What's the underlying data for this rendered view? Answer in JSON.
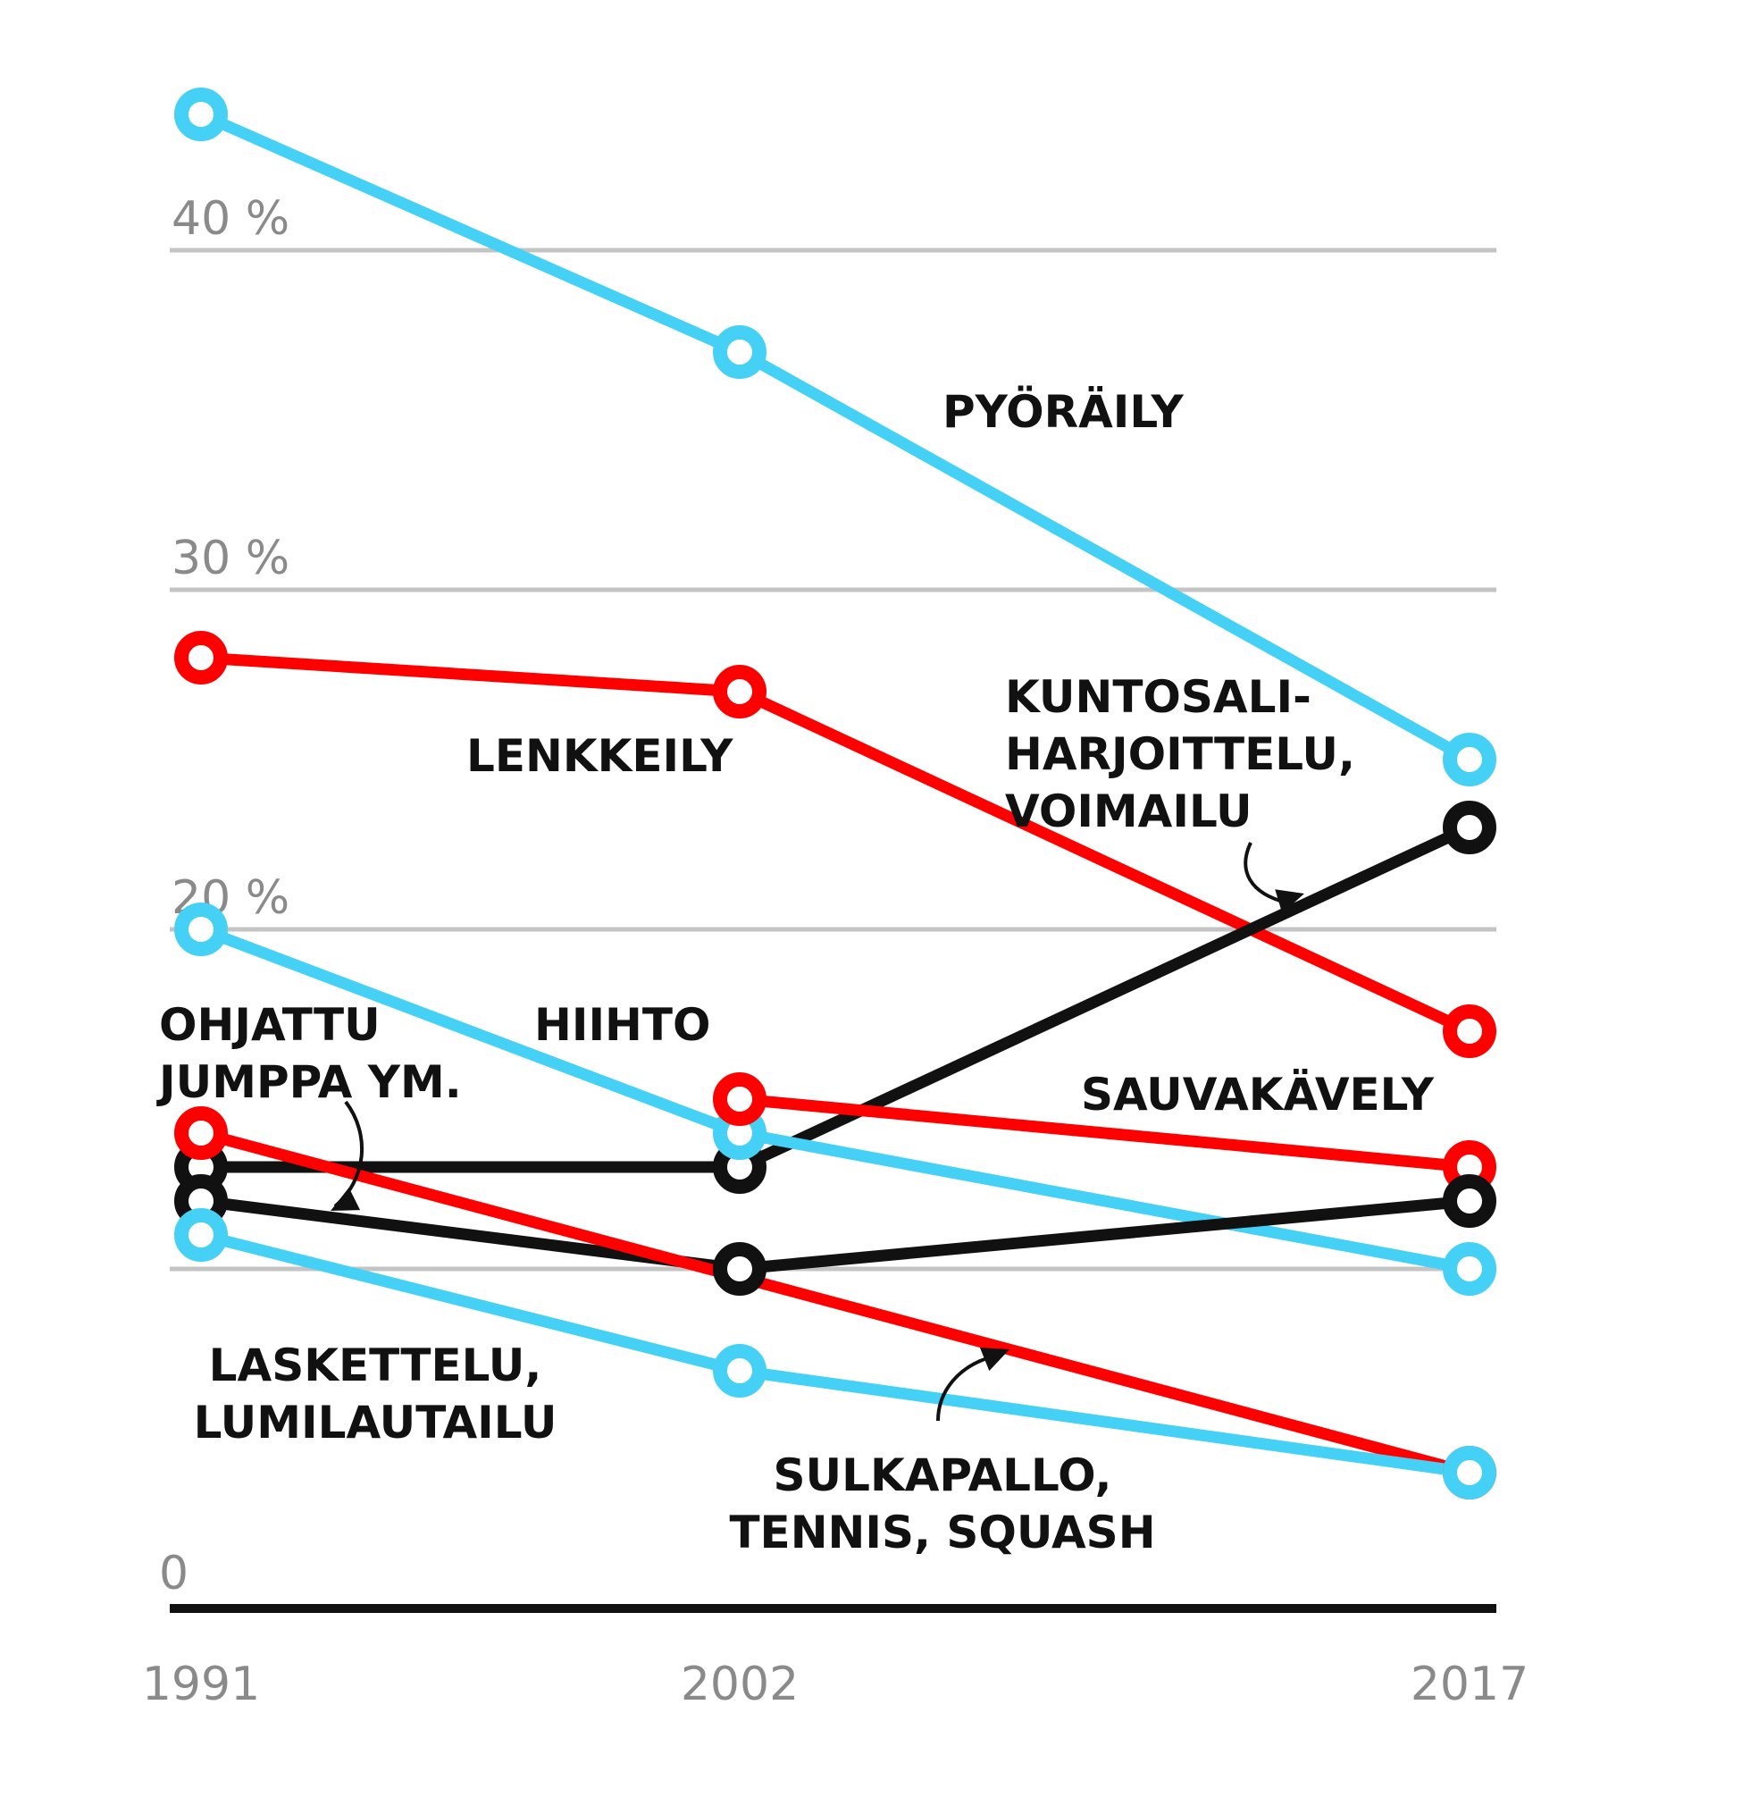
{
  "chart_data": {
    "type": "line",
    "x": [
      1991,
      2002,
      2017
    ],
    "x_tick_labels": [
      "1991",
      "2002",
      "2017"
    ],
    "ylim": [
      0,
      44
    ],
    "y_ticks": [
      {
        "value": 0,
        "label": "0"
      },
      {
        "value": 10,
        "label": ""
      },
      {
        "value": 20,
        "label": "20 %"
      },
      {
        "value": 30,
        "label": "30 %"
      },
      {
        "value": 40,
        "label": "40 %"
      }
    ],
    "grid": true,
    "colors": {
      "cyan": "#45d0f5",
      "red": "#ff0000",
      "black": "#111111",
      "grid": "#c4c4c4",
      "axis": "#111111"
    },
    "series": [
      {
        "name": "PYÖRÄILY",
        "label_lines": [
          "PYÖRÄILY"
        ],
        "color": "#45d0f5",
        "points": [
          [
            1991,
            44
          ],
          [
            2002,
            37
          ],
          [
            2017,
            25
          ]
        ]
      },
      {
        "name": "LENKKEILY",
        "label_lines": [
          "LENKKEILY"
        ],
        "color": "#ff0000",
        "points": [
          [
            1991,
            28
          ],
          [
            2002,
            27
          ],
          [
            2017,
            17
          ]
        ]
      },
      {
        "name": "KUNTOSALI-HARJOITTELU, VOIMAILU",
        "label_lines": [
          "KUNTOSALI-",
          "HARJOITTELU,",
          "VOIMAILU"
        ],
        "color": "#111111",
        "points": [
          [
            1991,
            13
          ],
          [
            2002,
            13
          ],
          [
            2017,
            23
          ]
        ]
      },
      {
        "name": "HIIHTO",
        "label_lines": [
          "HIIHTO"
        ],
        "color": "#45d0f5",
        "points": [
          [
            1991,
            20
          ],
          [
            2002,
            14
          ],
          [
            2017,
            10
          ]
        ]
      },
      {
        "name": "SAUVAKÄVELY",
        "label_lines": [
          "SAUVAKÄVELY"
        ],
        "color": "#ff0000",
        "points": [
          [
            2002,
            15
          ],
          [
            2017,
            13
          ]
        ]
      },
      {
        "name": "OHJATTU JUMPPA YM.",
        "label_lines": [
          "OHJATTU",
          "JUMPPA YM."
        ],
        "color": "#111111",
        "points": [
          [
            1991,
            12
          ],
          [
            2002,
            10
          ],
          [
            2017,
            12
          ]
        ]
      },
      {
        "name": "SULKAPALLO, TENNIS, SQUASH",
        "label_lines": [
          "SULKAPALLO,",
          "TENNIS, SQUASH"
        ],
        "color": "#ff0000",
        "points": [
          [
            1991,
            14
          ],
          [
            2017,
            4
          ]
        ]
      },
      {
        "name": "LASKETTELU, LUMILAUTAILU",
        "label_lines": [
          "LASKETTELU,",
          "LUMILAUTAILU"
        ],
        "color": "#45d0f5",
        "points": [
          [
            1991,
            11
          ],
          [
            2002,
            7
          ],
          [
            2017,
            4
          ]
        ]
      }
    ]
  }
}
